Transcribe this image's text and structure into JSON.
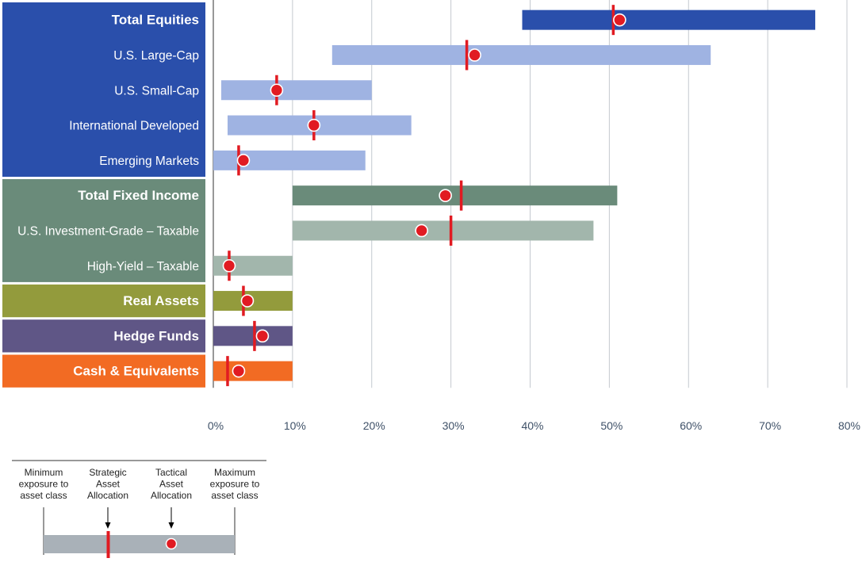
{
  "chart_data": {
    "type": "bar",
    "subtype": "range-bar with markers",
    "categories": [
      "Total Equities",
      "U.S. Large-Cap",
      "U.S. Small-Cap",
      "International Developed",
      "Emerging Markets",
      "Total Fixed Income",
      "U.S. Investment-Grade – Taxable",
      "High-Yield – Taxable",
      "Real Assets",
      "Hedge Funds",
      "Cash & Equivalents"
    ],
    "rows": [
      {
        "label": "Total Equities",
        "group": "equity",
        "level": "total",
        "min": 39,
        "max": 76,
        "strategic": 50.5,
        "tactical": 51.3
      },
      {
        "label": "U.S. Large-Cap",
        "group": "equity",
        "level": "sub",
        "min": 15,
        "max": 62.8,
        "strategic": 32,
        "tactical": 33
      },
      {
        "label": "U.S. Small-Cap",
        "group": "equity",
        "level": "sub",
        "min": 1,
        "max": 20,
        "strategic": 8,
        "tactical": 8
      },
      {
        "label": "International Developed",
        "group": "equity",
        "level": "sub",
        "min": 1.8,
        "max": 25,
        "strategic": 12.7,
        "tactical": 12.7
      },
      {
        "label": "Emerging Markets",
        "group": "equity",
        "level": "sub",
        "min": 0,
        "max": 19.2,
        "strategic": 3.2,
        "tactical": 3.8
      },
      {
        "label": "Total Fixed Income",
        "group": "fixed",
        "level": "total",
        "min": 10,
        "max": 51,
        "strategic": 31.3,
        "tactical": 29.3
      },
      {
        "label": "U.S. Investment-Grade – Taxable",
        "group": "fixed",
        "level": "sub",
        "min": 10,
        "max": 48,
        "strategic": 30,
        "tactical": 26.3
      },
      {
        "label": "High-Yield – Taxable",
        "group": "fixed",
        "level": "sub",
        "min": 0,
        "max": 10,
        "strategic": 2,
        "tactical": 2
      },
      {
        "label": "Real Assets",
        "group": "real",
        "level": "total",
        "min": 0,
        "max": 10,
        "strategic": 3.8,
        "tactical": 4.3
      },
      {
        "label": "Hedge Funds",
        "group": "hedge",
        "level": "total",
        "min": 0,
        "max": 10,
        "strategic": 5.2,
        "tactical": 6.2
      },
      {
        "label": "Cash & Equivalents",
        "group": "cash",
        "level": "total",
        "min": 0,
        "max": 10,
        "strategic": 1.8,
        "tactical": 3.2
      }
    ],
    "xlim": [
      0,
      80
    ],
    "xticks": [
      "0%",
      "10%",
      "20%",
      "30%",
      "40%",
      "50%",
      "60%",
      "70%",
      "80%"
    ],
    "grid": "vertical",
    "legend": {
      "position": "bottom-left",
      "items": [
        "Minimum\nexposure to\nasset class",
        "Strategic\nAsset\nAllocation",
        "Tactical\nAsset\nAllocation",
        "Maximum\nexposure to\nasset class"
      ]
    }
  },
  "colors": {
    "equity_panel": "#2a4fab",
    "equity_total_bar": "#2a4fab",
    "equity_sub_bar": "#9fb3e2",
    "fixed_panel": "#6a8b7a",
    "fixed_total_bar": "#6a8b7a",
    "fixed_sub_bar": "#a2b6ac",
    "real_panel": "#939b3c",
    "hedge_panel": "#5f5686",
    "cash_panel": "#f26b23",
    "marker_red": "#e11b22",
    "legend_bar": "#a9b1b8",
    "grid": "#c4c9cf",
    "axis": "#555555"
  }
}
